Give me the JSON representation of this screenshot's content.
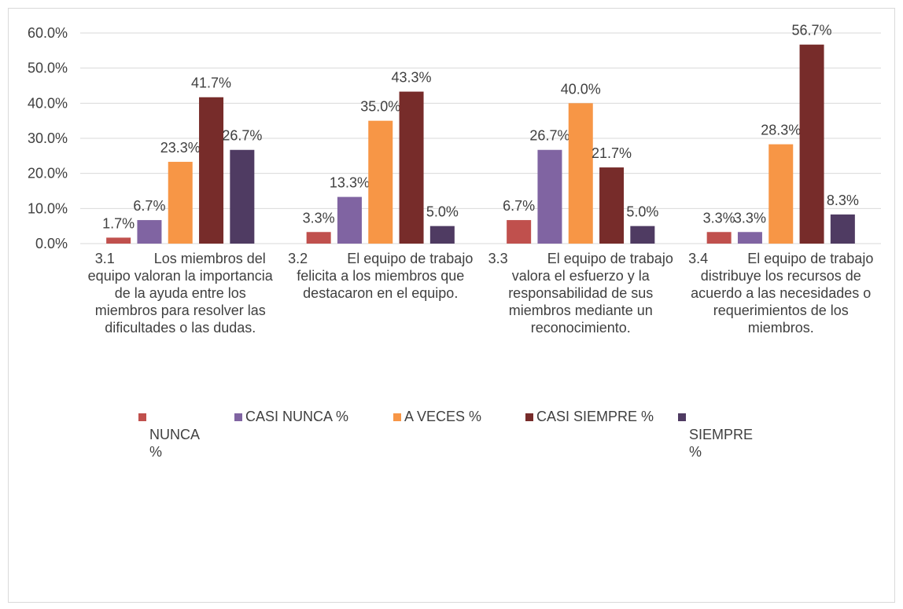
{
  "chart_data": {
    "type": "bar",
    "categories": [
      "3.1          Los miembros del equipo valoran la importancia de la ayuda entre los miembros para resolver las dificultades o las dudas.",
      "3.2          El equipo de trabajo felicita a los miembros que destacaron en el equipo.",
      "3.3          El equipo de trabajo valora el esfuerzo y la responsabilidad de sus miembros mediante un reconocimiento.",
      "3.4          El equipo de trabajo distribuye los recursos de acuerdo a las necesidades o requerimientos de los miembros."
    ],
    "series": [
      {
        "name": "NUNCA %",
        "color": "#c0504d",
        "values": [
          1.7,
          3.3,
          6.7,
          3.3
        ],
        "value_labels": [
          "1.7%",
          "3.3%",
          "6.7%",
          "3.3%"
        ]
      },
      {
        "name": "CASI NUNCA %",
        "color": "#8064a2",
        "values": [
          6.7,
          13.3,
          26.7,
          3.3
        ],
        "value_labels": [
          "6.7%",
          "13.3%",
          "26.7%",
          "3.3%"
        ]
      },
      {
        "name": "A VECES %",
        "color": "#f79646",
        "values": [
          23.3,
          35.0,
          40.0,
          28.3
        ],
        "value_labels": [
          "23.3%",
          "35.0%",
          "40.0%",
          "28.3%"
        ]
      },
      {
        "name": "CASI SIEMPRE %",
        "color": "#772c2a",
        "values": [
          41.7,
          43.3,
          21.7,
          56.7
        ],
        "value_labels": [
          "41.7%",
          "43.3%",
          "21.7%",
          "56.7%"
        ]
      },
      {
        "name": "SIEMPRE %",
        "color": "#4f3b62",
        "values": [
          26.7,
          5.0,
          5.0,
          8.3
        ],
        "value_labels": [
          "26.7%",
          "5.0%",
          "5.0%",
          "8.3%"
        ]
      }
    ],
    "ylim": [
      0,
      60
    ],
    "yticks": [
      {
        "value": 0,
        "label": "0.0%"
      },
      {
        "value": 10,
        "label": "10.0%"
      },
      {
        "value": 20,
        "label": "20.0%"
      },
      {
        "value": 30,
        "label": "30.0%"
      },
      {
        "value": 40,
        "label": "40.0%"
      },
      {
        "value": 50,
        "label": "50.0%"
      },
      {
        "value": 60,
        "label": "60.0%"
      }
    ],
    "grid": true,
    "legend": "bottom"
  }
}
